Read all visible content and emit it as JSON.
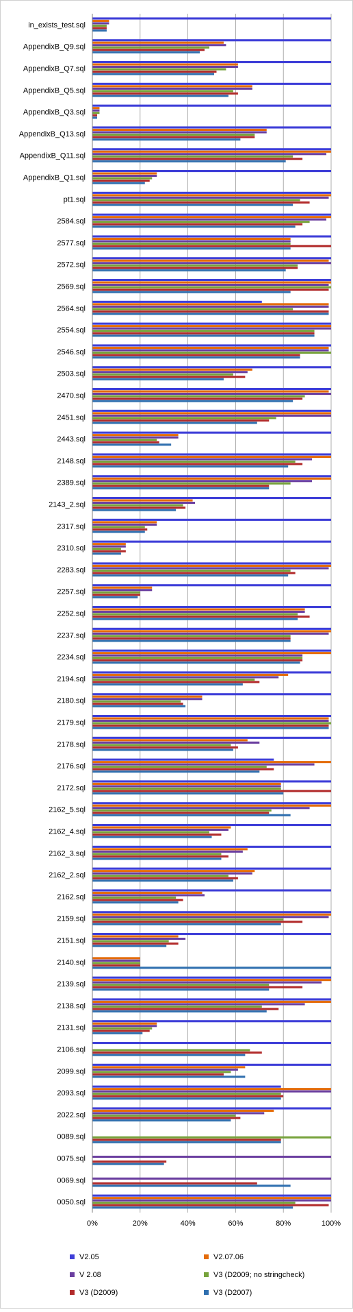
{
  "chart_data": {
    "type": "bar",
    "orientation": "horizontal",
    "title": "",
    "xlabel": "",
    "ylabel": "",
    "xlim": [
      0,
      1
    ],
    "x_ticks": [
      "0%",
      "20%",
      "40%",
      "60%",
      "80%",
      "100%"
    ],
    "grid": true,
    "legend_position": "bottom",
    "categories": [
      "in_exists_test.sql",
      "AppendixB_Q9.sql",
      "AppendixB_Q7.sql",
      "AppendixB_Q5.sql",
      "AppendixB_Q3.sql",
      "AppendixB_Q13.sql",
      "AppendixB_Q11.sql",
      "AppendixB_Q1.sql",
      "pt1.sql",
      "2584.sql",
      "2577.sql",
      "2572.sql",
      "2569.sql",
      "2564.sql",
      "2554.sql",
      "2546.sql",
      "2503.sql",
      "2470.sql",
      "2451.sql",
      "2443.sql",
      "2148.sql",
      "2389.sql",
      "2143_2.sql",
      "2317.sql",
      "2310.sql",
      "2283.sql",
      "2257.sql",
      "2252.sql",
      "2237.sql",
      "2234.sql",
      "2194.sql",
      "2180.sql",
      "2179.sql",
      "2178.sql",
      "2176.sql",
      "2172.sql",
      "2162_5.sql",
      "2162_4.sql",
      "2162_3.sql",
      "2162_2.sql",
      "2162.sql",
      "2159.sql",
      "2151.sql",
      "2140.sql",
      "2139.sql",
      "2138.sql",
      "2131.sql",
      "2106.sql",
      "2099.sql",
      "2093.sql",
      "2022.sql",
      "0089.sql",
      "0075.sql",
      "0069.sql",
      "0050.sql"
    ],
    "series": [
      {
        "name": "V2.05",
        "color": "#3f3fd8",
        "values": [
          1.0,
          1.0,
          1.0,
          1.0,
          1.0,
          1.0,
          1.0,
          1.0,
          1.0,
          1.0,
          1.0,
          1.0,
          1.0,
          0.71,
          1.0,
          1.0,
          1.0,
          1.0,
          1.0,
          1.0,
          1.0,
          1.0,
          1.0,
          1.0,
          1.0,
          1.0,
          1.0,
          1.0,
          1.0,
          1.0,
          1.0,
          1.0,
          1.0,
          1.0,
          0.76,
          1.0,
          1.0,
          1.0,
          1.0,
          1.0,
          1.0,
          1.0,
          1.0,
          0,
          1.0,
          1.0,
          1.0,
          1.0,
          1.0,
          0.79,
          1.0,
          0,
          0,
          0,
          1.0
        ]
      },
      {
        "name": "V2.07.06",
        "color": "#e46c0a",
        "values": [
          0.07,
          0.55,
          0.61,
          0.67,
          0.03,
          0.73,
          1.0,
          0.27,
          1.0,
          1.0,
          0.83,
          0.99,
          1.0,
          0.99,
          1.0,
          0.99,
          0.67,
          0.99,
          1.0,
          0.36,
          1.0,
          1.0,
          0.42,
          0.27,
          0.14,
          1.0,
          0.25,
          0.89,
          1.0,
          1.0,
          0.82,
          0.46,
          0.99,
          0.65,
          1.0,
          0.79,
          1.0,
          0.58,
          0.65,
          0.68,
          0.46,
          1.0,
          0.36,
          0.2,
          1.0,
          1.0,
          0.27,
          0,
          0.64,
          1.0,
          0.76,
          0,
          0,
          0,
          1.0
        ]
      },
      {
        "name": "V 2.08",
        "color": "#6b3fa0",
        "values": [
          0.07,
          0.56,
          0.61,
          0.67,
          0.03,
          0.73,
          0.98,
          0.27,
          0.99,
          0.98,
          0.83,
          1.0,
          0.99,
          0.99,
          1.0,
          0.99,
          0.65,
          1.0,
          1.0,
          0.36,
          0.92,
          0.92,
          0.43,
          0.27,
          0.14,
          0.99,
          0.25,
          0.89,
          0.99,
          0.88,
          0.78,
          0.46,
          0.99,
          0.7,
          0.93,
          0.79,
          0.91,
          0.57,
          0.63,
          0.67,
          0.47,
          0.99,
          0.39,
          0.2,
          0.96,
          0.89,
          0.27,
          0,
          0.61,
          1.0,
          0.72,
          0,
          1.0,
          1.0,
          1.0
        ]
      },
      {
        "name": "V3 (D2009; no stringcheck)",
        "color": "#77a33c",
        "values": [
          0.06,
          0.49,
          0.56,
          0.59,
          0.03,
          0.68,
          0.84,
          0.25,
          0.87,
          0.91,
          0.83,
          0.86,
          1.0,
          0.84,
          0.93,
          1.0,
          0.59,
          0.89,
          0.77,
          0.27,
          0.85,
          0.83,
          0.38,
          0.22,
          0.12,
          0.83,
          0.2,
          0.86,
          0.83,
          0.88,
          0.68,
          0.37,
          1.0,
          0.58,
          0.73,
          0.79,
          0.75,
          0.49,
          0.54,
          0.57,
          0.35,
          0.8,
          0.32,
          0.2,
          0.74,
          0.71,
          0.25,
          0.66,
          0.58,
          0.79,
          0.6,
          1.0,
          0,
          0,
          0.85
        ]
      },
      {
        "name": "V3 (D2009)",
        "color": "#b22b2b",
        "values": [
          0.06,
          0.47,
          0.52,
          0.61,
          0.02,
          0.68,
          0.88,
          0.24,
          0.91,
          0.88,
          1.0,
          0.86,
          0.99,
          0.99,
          0.93,
          0.87,
          0.64,
          0.88,
          0.74,
          0.28,
          0.88,
          0.74,
          0.39,
          0.23,
          0.14,
          0.85,
          0.2,
          0.91,
          0.83,
          0.88,
          0.7,
          0.38,
          0.99,
          0.61,
          0.76,
          1.0,
          0.74,
          0.54,
          0.57,
          0.61,
          0.38,
          0.88,
          0.36,
          0.2,
          0.88,
          0.78,
          0.24,
          0.71,
          0.55,
          0.8,
          0.62,
          0.79,
          0.31,
          0.69,
          0.99
        ]
      },
      {
        "name": "V3 (D2007)",
        "color": "#2f6faf",
        "values": [
          0.06,
          0.45,
          0.51,
          0.57,
          0.02,
          0.62,
          0.81,
          0.22,
          0.84,
          0.85,
          0.83,
          0.81,
          0.83,
          0.99,
          0.93,
          0.87,
          0.55,
          0.84,
          0.69,
          0.33,
          0.82,
          0.74,
          0.35,
          0.22,
          0.12,
          0.82,
          0.19,
          0.86,
          0.83,
          0.87,
          0.63,
          0.39,
          0.99,
          0.59,
          0.7,
          0.8,
          0.83,
          0.5,
          0.54,
          0.59,
          0.36,
          0.79,
          0.31,
          1.0,
          0.74,
          0.73,
          0.21,
          0.64,
          0.64,
          0.79,
          0.58,
          0.79,
          0.3,
          0.83,
          0.84
        ]
      }
    ]
  }
}
